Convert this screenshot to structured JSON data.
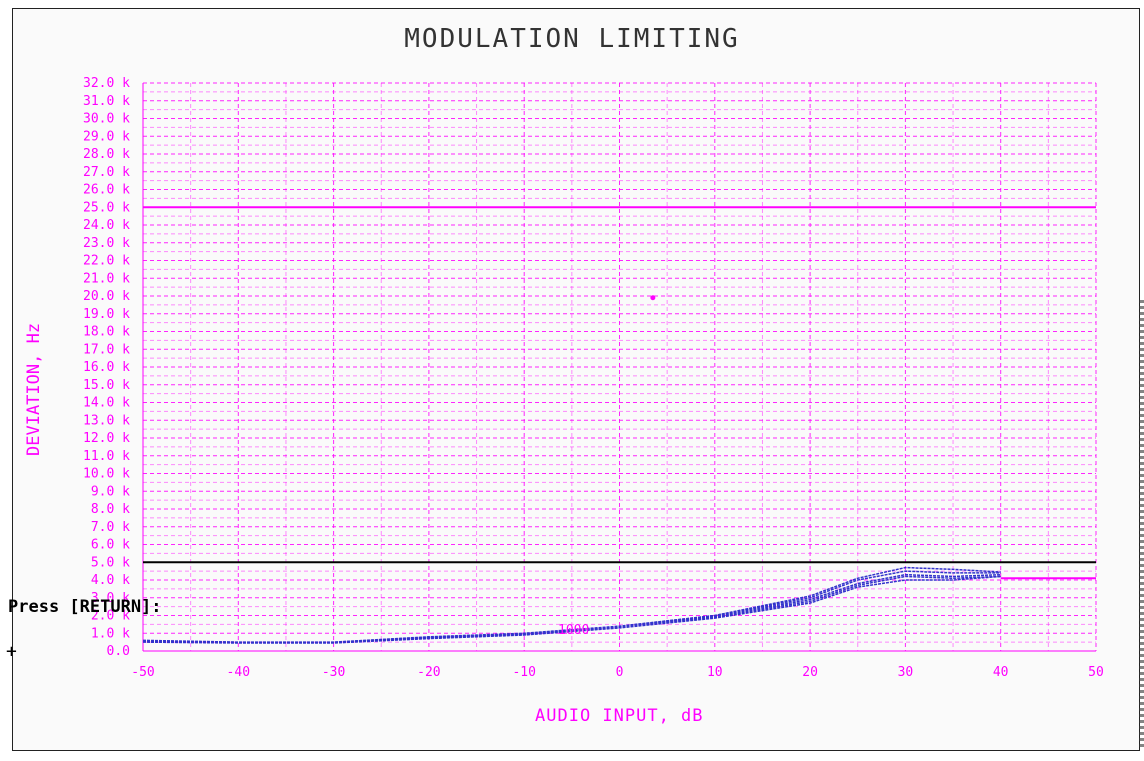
{
  "prompt": "Press [RETURN]:",
  "curve_label": "1000",
  "chart_data": {
    "type": "line",
    "title": "MODULATION LIMITING",
    "xlabel": "AUDIO INPUT, dB",
    "ylabel": "DEVIATION, Hz",
    "xlim": [
      -50,
      50
    ],
    "ylim": [
      0,
      32000
    ],
    "x_ticks": [
      "-50",
      "-40",
      "-30",
      "-20",
      "-10",
      "0",
      "10",
      "20",
      "30",
      "40",
      "50"
    ],
    "y_ticks": [
      "0.0",
      "1.0 k",
      "2.0 k",
      "3.0 k",
      "4.0 k",
      "5.0 k",
      "6.0 k",
      "7.0 k",
      "8.0 k",
      "9.0 k",
      "10.0 k",
      "11.0 k",
      "12.0 k",
      "13.0 k",
      "14.0 k",
      "15.0 k",
      "16.0 k",
      "17.0 k",
      "18.0 k",
      "19.0 k",
      "20.0 k",
      "21.0 k",
      "22.0 k",
      "23.0 k",
      "24.0 k",
      "25.0 k",
      "26.0 k",
      "27.0 k",
      "28.0 k",
      "29.0 k",
      "30.0 k",
      "31.0 k",
      "32.0 k"
    ],
    "grid": true,
    "reference_lines": [
      {
        "y": 25000,
        "color": "#ff00ff"
      },
      {
        "y": 5000,
        "color": "#000000"
      },
      {
        "y": 4100,
        "color": "#ff00ff",
        "x_start": 40
      }
    ],
    "marker_point": {
      "x": 3.5,
      "y": 19900,
      "color": "#ff00ff"
    },
    "series": [
      {
        "color": "#3333cc",
        "x": [
          -50,
          -40,
          -30,
          -20,
          -10,
          0,
          10,
          20,
          25,
          30,
          35,
          40
        ],
        "y": [
          600,
          500,
          500,
          800,
          1000,
          1400,
          2000,
          3000,
          4000,
          4500,
          4400,
          4400
        ]
      },
      {
        "color": "#3333cc",
        "x": [
          -50,
          -40,
          -30,
          -20,
          -10,
          0,
          10,
          20,
          25,
          30,
          35,
          40
        ],
        "y": [
          550,
          480,
          480,
          750,
          950,
          1350,
          1950,
          2900,
          3800,
          4300,
          4200,
          4300
        ]
      },
      {
        "color": "#3333cc",
        "x": [
          -50,
          -40,
          -30,
          -20,
          -10,
          0,
          10,
          20,
          25,
          30,
          35,
          40
        ],
        "y": [
          500,
          450,
          450,
          700,
          900,
          1300,
          1850,
          2700,
          3600,
          4000,
          4000,
          4200
        ]
      },
      {
        "color": "#3333cc",
        "x": [
          -50,
          -40,
          -30,
          -20,
          -10,
          0,
          10,
          20,
          25,
          30,
          35,
          40
        ],
        "y": [
          580,
          490,
          490,
          780,
          980,
          1380,
          2000,
          3100,
          4100,
          4700,
          4600,
          4450
        ]
      },
      {
        "color": "#3333cc",
        "x": [
          -50,
          -40,
          -30,
          -20,
          -10,
          0,
          10,
          20,
          25,
          30,
          35,
          40
        ],
        "y": [
          520,
          470,
          470,
          720,
          920,
          1320,
          1900,
          2800,
          3700,
          4200,
          4100,
          4200
        ]
      }
    ]
  }
}
